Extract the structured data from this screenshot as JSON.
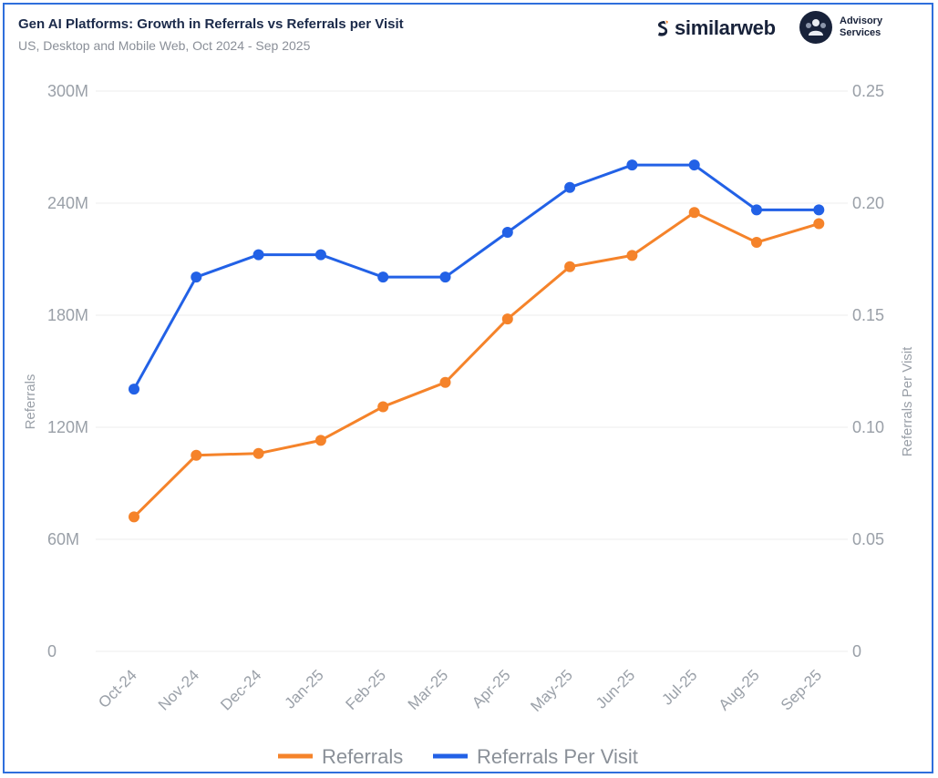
{
  "header": {
    "title": "Gen AI Platforms: Growth in Referrals vs Referrals per Visit",
    "subtitle": "US, Desktop and Mobile Web, Oct 2024 - Sep 2025",
    "brand": "similarweb",
    "advisory_line1": "Advisory",
    "advisory_line2": "Services"
  },
  "colors": {
    "referrals": "#f5832a",
    "referrals_per_visit": "#2261e6",
    "grid": "#eeeeee",
    "frame": "#2f6fdc"
  },
  "chart_data": {
    "type": "line",
    "title": "Gen AI Platforms: Growth in Referrals vs Referrals per Visit",
    "subtitle": "US, Desktop and Mobile Web, Oct 2024 - Sep 2025",
    "categories": [
      "Oct-24",
      "Nov-24",
      "Dec-24",
      "Jan-25",
      "Feb-25",
      "Mar-25",
      "Apr-25",
      "May-25",
      "Jun-25",
      "Jul-25",
      "Aug-25",
      "Sep-25"
    ],
    "series": [
      {
        "name": "Referrals",
        "axis": "left",
        "values": [
          72000000,
          105000000,
          106000000,
          113000000,
          131000000,
          144000000,
          178000000,
          206000000,
          212000000,
          235000000,
          219000000,
          229000000
        ]
      },
      {
        "name": "Referrals Per Visit",
        "axis": "right",
        "values": [
          0.117,
          0.167,
          0.177,
          0.177,
          0.167,
          0.167,
          0.187,
          0.207,
          0.217,
          0.217,
          0.197,
          0.197
        ]
      }
    ],
    "ylabel": "Referrals",
    "y2label": "Referrals Per Visit",
    "ylim": [
      0,
      300000000
    ],
    "y2lim": [
      0,
      0.25
    ],
    "yticks": [
      "0",
      "60M",
      "120M",
      "180M",
      "240M",
      "300M"
    ],
    "y2ticks": [
      "0",
      "0.05",
      "0.10",
      "0.15",
      "0.20",
      "0.25"
    ],
    "grid": true,
    "legend": "bottom-center"
  }
}
